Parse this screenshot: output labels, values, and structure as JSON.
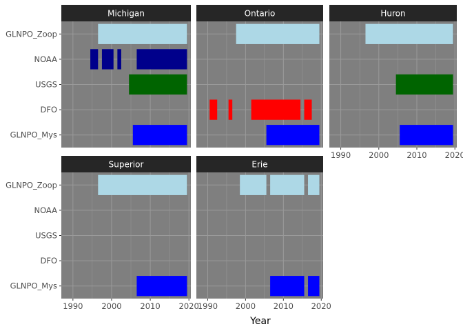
{
  "chart_data": {
    "type": "bar",
    "orientation": "horizontal-range",
    "xlabel": "Year",
    "ylabel": "",
    "xlim": [
      1987,
      2020.5
    ],
    "x_ticks": [
      1990,
      2000,
      2010,
      2020
    ],
    "categories": [
      "GLNPO_Zoop",
      "NOAA",
      "USGS",
      "DFO",
      "GLNPO_Mys"
    ],
    "grid": true,
    "legend": "none",
    "colors": {
      "GLNPO_Zoop": "#add8e6",
      "NOAA": "#00008b",
      "USGS": "#006400",
      "DFO": "#ff0000",
      "GLNPO_Mys": "#0000ff"
    },
    "panels": [
      {
        "name": "Michigan",
        "ranges": {
          "GLNPO_Zoop": [
            [
              1996.5,
              2019.5
            ]
          ],
          "NOAA": [
            [
              1994.5,
              1996.5
            ],
            [
              1997.5,
              2000.5
            ],
            [
              2001.5,
              2002.5
            ],
            [
              2006.5,
              2019.5
            ]
          ],
          "USGS": [
            [
              2004.5,
              2019.5
            ]
          ],
          "DFO": [],
          "GLNPO_Mys": [
            [
              2005.5,
              2019.5
            ]
          ]
        }
      },
      {
        "name": "Ontario",
        "ranges": {
          "GLNPO_Zoop": [
            [
              1997.5,
              2019.5
            ]
          ],
          "NOAA": [],
          "USGS": [],
          "DFO": [
            [
              1990.5,
              1992.5
            ],
            [
              1995.5,
              1996.5
            ],
            [
              2001.5,
              2014.5
            ],
            [
              2015.5,
              2017.5
            ]
          ],
          "GLNPO_Mys": [
            [
              2005.5,
              2019.5
            ]
          ]
        }
      },
      {
        "name": "Huron",
        "ranges": {
          "GLNPO_Zoop": [
            [
              1996.5,
              2019.5
            ]
          ],
          "NOAA": [],
          "USGS": [
            [
              2004.5,
              2019.5
            ]
          ],
          "DFO": [],
          "GLNPO_Mys": [
            [
              2005.5,
              2019.5
            ]
          ]
        }
      },
      {
        "name": "Superior",
        "ranges": {
          "GLNPO_Zoop": [
            [
              1996.5,
              2019.5
            ]
          ],
          "NOAA": [],
          "USGS": [],
          "DFO": [],
          "GLNPO_Mys": [
            [
              2006.5,
              2019.5
            ]
          ]
        }
      },
      {
        "name": "Erie",
        "ranges": {
          "GLNPO_Zoop": [
            [
              1998.5,
              2005.5
            ],
            [
              2006.5,
              2015.5
            ],
            [
              2016.5,
              2019.5
            ]
          ],
          "NOAA": [],
          "USGS": [],
          "DFO": [],
          "GLNPO_Mys": [
            [
              2006.5,
              2015.5
            ],
            [
              2016.5,
              2019.5
            ]
          ]
        }
      }
    ],
    "style": {
      "panel_background": "#7f7f7f",
      "strip_background": "#262626",
      "grid_color": "#9a9a9a"
    }
  }
}
